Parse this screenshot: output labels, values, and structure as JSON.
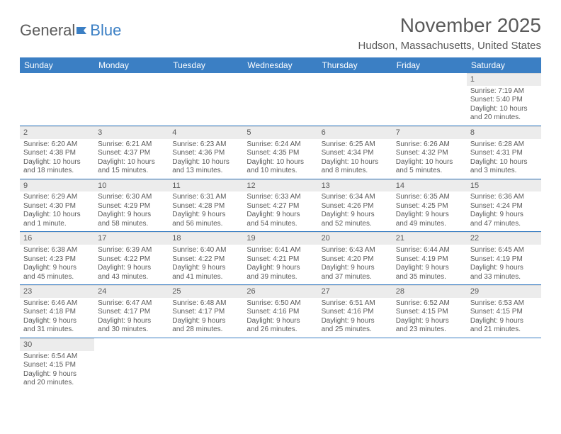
{
  "brand": {
    "part1": "General",
    "part2": "Blue"
  },
  "title": "November 2025",
  "location": "Hudson, Massachusetts, United States",
  "colors": {
    "accent": "#3b7fc4",
    "text": "#5a5a5a",
    "daynum_bg": "#ececec",
    "background": "#ffffff"
  },
  "day_headers": [
    "Sunday",
    "Monday",
    "Tuesday",
    "Wednesday",
    "Thursday",
    "Friday",
    "Saturday"
  ],
  "weeks": [
    [
      null,
      null,
      null,
      null,
      null,
      null,
      {
        "n": "1",
        "sr": "Sunrise: 7:19 AM",
        "ss": "Sunset: 5:40 PM",
        "d1": "Daylight: 10 hours",
        "d2": "and 20 minutes."
      }
    ],
    [
      {
        "n": "2",
        "sr": "Sunrise: 6:20 AM",
        "ss": "Sunset: 4:38 PM",
        "d1": "Daylight: 10 hours",
        "d2": "and 18 minutes."
      },
      {
        "n": "3",
        "sr": "Sunrise: 6:21 AM",
        "ss": "Sunset: 4:37 PM",
        "d1": "Daylight: 10 hours",
        "d2": "and 15 minutes."
      },
      {
        "n": "4",
        "sr": "Sunrise: 6:23 AM",
        "ss": "Sunset: 4:36 PM",
        "d1": "Daylight: 10 hours",
        "d2": "and 13 minutes."
      },
      {
        "n": "5",
        "sr": "Sunrise: 6:24 AM",
        "ss": "Sunset: 4:35 PM",
        "d1": "Daylight: 10 hours",
        "d2": "and 10 minutes."
      },
      {
        "n": "6",
        "sr": "Sunrise: 6:25 AM",
        "ss": "Sunset: 4:34 PM",
        "d1": "Daylight: 10 hours",
        "d2": "and 8 minutes."
      },
      {
        "n": "7",
        "sr": "Sunrise: 6:26 AM",
        "ss": "Sunset: 4:32 PM",
        "d1": "Daylight: 10 hours",
        "d2": "and 5 minutes."
      },
      {
        "n": "8",
        "sr": "Sunrise: 6:28 AM",
        "ss": "Sunset: 4:31 PM",
        "d1": "Daylight: 10 hours",
        "d2": "and 3 minutes."
      }
    ],
    [
      {
        "n": "9",
        "sr": "Sunrise: 6:29 AM",
        "ss": "Sunset: 4:30 PM",
        "d1": "Daylight: 10 hours",
        "d2": "and 1 minute."
      },
      {
        "n": "10",
        "sr": "Sunrise: 6:30 AM",
        "ss": "Sunset: 4:29 PM",
        "d1": "Daylight: 9 hours",
        "d2": "and 58 minutes."
      },
      {
        "n": "11",
        "sr": "Sunrise: 6:31 AM",
        "ss": "Sunset: 4:28 PM",
        "d1": "Daylight: 9 hours",
        "d2": "and 56 minutes."
      },
      {
        "n": "12",
        "sr": "Sunrise: 6:33 AM",
        "ss": "Sunset: 4:27 PM",
        "d1": "Daylight: 9 hours",
        "d2": "and 54 minutes."
      },
      {
        "n": "13",
        "sr": "Sunrise: 6:34 AM",
        "ss": "Sunset: 4:26 PM",
        "d1": "Daylight: 9 hours",
        "d2": "and 52 minutes."
      },
      {
        "n": "14",
        "sr": "Sunrise: 6:35 AM",
        "ss": "Sunset: 4:25 PM",
        "d1": "Daylight: 9 hours",
        "d2": "and 49 minutes."
      },
      {
        "n": "15",
        "sr": "Sunrise: 6:36 AM",
        "ss": "Sunset: 4:24 PM",
        "d1": "Daylight: 9 hours",
        "d2": "and 47 minutes."
      }
    ],
    [
      {
        "n": "16",
        "sr": "Sunrise: 6:38 AM",
        "ss": "Sunset: 4:23 PM",
        "d1": "Daylight: 9 hours",
        "d2": "and 45 minutes."
      },
      {
        "n": "17",
        "sr": "Sunrise: 6:39 AM",
        "ss": "Sunset: 4:22 PM",
        "d1": "Daylight: 9 hours",
        "d2": "and 43 minutes."
      },
      {
        "n": "18",
        "sr": "Sunrise: 6:40 AM",
        "ss": "Sunset: 4:22 PM",
        "d1": "Daylight: 9 hours",
        "d2": "and 41 minutes."
      },
      {
        "n": "19",
        "sr": "Sunrise: 6:41 AM",
        "ss": "Sunset: 4:21 PM",
        "d1": "Daylight: 9 hours",
        "d2": "and 39 minutes."
      },
      {
        "n": "20",
        "sr": "Sunrise: 6:43 AM",
        "ss": "Sunset: 4:20 PM",
        "d1": "Daylight: 9 hours",
        "d2": "and 37 minutes."
      },
      {
        "n": "21",
        "sr": "Sunrise: 6:44 AM",
        "ss": "Sunset: 4:19 PM",
        "d1": "Daylight: 9 hours",
        "d2": "and 35 minutes."
      },
      {
        "n": "22",
        "sr": "Sunrise: 6:45 AM",
        "ss": "Sunset: 4:19 PM",
        "d1": "Daylight: 9 hours",
        "d2": "and 33 minutes."
      }
    ],
    [
      {
        "n": "23",
        "sr": "Sunrise: 6:46 AM",
        "ss": "Sunset: 4:18 PM",
        "d1": "Daylight: 9 hours",
        "d2": "and 31 minutes."
      },
      {
        "n": "24",
        "sr": "Sunrise: 6:47 AM",
        "ss": "Sunset: 4:17 PM",
        "d1": "Daylight: 9 hours",
        "d2": "and 30 minutes."
      },
      {
        "n": "25",
        "sr": "Sunrise: 6:48 AM",
        "ss": "Sunset: 4:17 PM",
        "d1": "Daylight: 9 hours",
        "d2": "and 28 minutes."
      },
      {
        "n": "26",
        "sr": "Sunrise: 6:50 AM",
        "ss": "Sunset: 4:16 PM",
        "d1": "Daylight: 9 hours",
        "d2": "and 26 minutes."
      },
      {
        "n": "27",
        "sr": "Sunrise: 6:51 AM",
        "ss": "Sunset: 4:16 PM",
        "d1": "Daylight: 9 hours",
        "d2": "and 25 minutes."
      },
      {
        "n": "28",
        "sr": "Sunrise: 6:52 AM",
        "ss": "Sunset: 4:15 PM",
        "d1": "Daylight: 9 hours",
        "d2": "and 23 minutes."
      },
      {
        "n": "29",
        "sr": "Sunrise: 6:53 AM",
        "ss": "Sunset: 4:15 PM",
        "d1": "Daylight: 9 hours",
        "d2": "and 21 minutes."
      }
    ],
    [
      {
        "n": "30",
        "sr": "Sunrise: 6:54 AM",
        "ss": "Sunset: 4:15 PM",
        "d1": "Daylight: 9 hours",
        "d2": "and 20 minutes."
      },
      null,
      null,
      null,
      null,
      null,
      null
    ]
  ]
}
